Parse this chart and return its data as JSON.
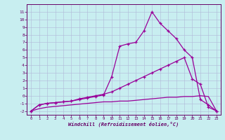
{
  "xlabel": "Windchill (Refroidissement éolien,°C)",
  "bg_color": "#c8eef0",
  "line_color": "#990099",
  "grid_color": "#b0b8d8",
  "xlim": [
    -0.5,
    23.5
  ],
  "ylim": [
    -2.5,
    12
  ],
  "xticks": [
    0,
    1,
    2,
    3,
    4,
    5,
    6,
    7,
    8,
    9,
    10,
    11,
    12,
    13,
    14,
    15,
    16,
    17,
    18,
    19,
    20,
    21,
    22,
    23
  ],
  "yticks": [
    -2,
    -1,
    0,
    1,
    2,
    3,
    4,
    5,
    6,
    7,
    8,
    9,
    10,
    11
  ],
  "line1_x": [
    0,
    1,
    2,
    3,
    4,
    5,
    6,
    7,
    8,
    9,
    10,
    11,
    12,
    13,
    14,
    15,
    16,
    17,
    18,
    19,
    20,
    21,
    22,
    23
  ],
  "line1_y": [
    -2,
    -1.7,
    -1.5,
    -1.4,
    -1.3,
    -1.2,
    -1.1,
    -1.0,
    -0.9,
    -0.8,
    -0.8,
    -0.7,
    -0.7,
    -0.6,
    -0.5,
    -0.4,
    -0.3,
    -0.2,
    -0.2,
    -0.1,
    -0.1,
    0.0,
    -0.1,
    -2
  ],
  "line2_x": [
    0,
    1,
    2,
    3,
    4,
    5,
    6,
    7,
    8,
    9,
    10,
    11,
    12,
    13,
    14,
    15,
    16,
    17,
    18,
    19,
    20,
    21,
    22,
    23
  ],
  "line2_y": [
    -2,
    -1.2,
    -1.0,
    -0.9,
    -0.8,
    -0.7,
    -0.4,
    -0.2,
    0.0,
    0.2,
    0.5,
    1.0,
    1.5,
    2.0,
    2.5,
    3.0,
    3.5,
    4.0,
    4.5,
    5.0,
    2.2,
    1.5,
    -1.5,
    -2
  ],
  "line3_x": [
    0,
    1,
    2,
    3,
    4,
    5,
    6,
    7,
    8,
    9,
    10,
    11,
    12,
    13,
    14,
    15,
    16,
    17,
    18,
    19,
    20,
    21,
    22,
    23
  ],
  "line3_y": [
    -2,
    -1.2,
    -1.0,
    -0.9,
    -0.8,
    -0.7,
    -0.5,
    -0.3,
    -0.1,
    0.1,
    2.5,
    6.5,
    6.8,
    7.0,
    8.5,
    11.0,
    9.5,
    8.5,
    7.5,
    6.0,
    5.0,
    -0.5,
    -1.2,
    -2
  ],
  "line1_marker": false,
  "line2_marker": true,
  "line3_marker": true
}
